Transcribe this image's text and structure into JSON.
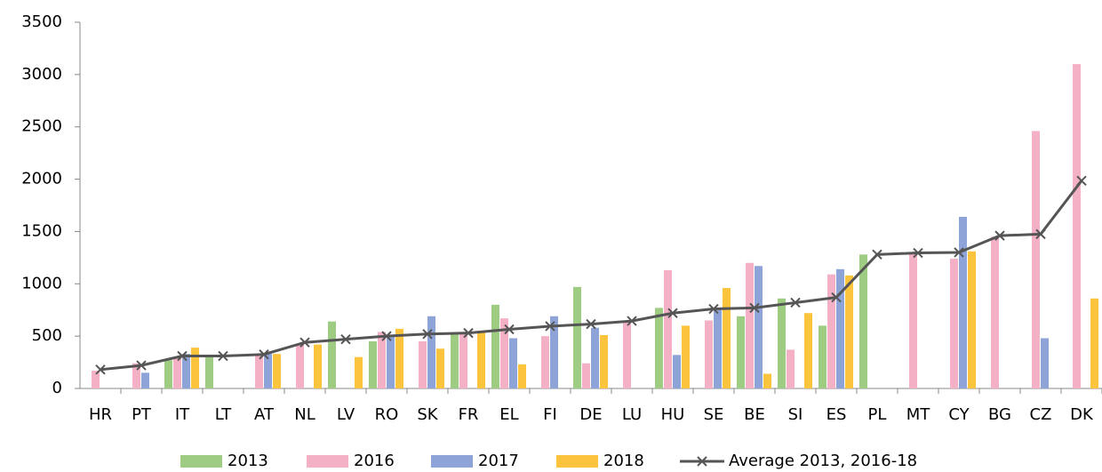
{
  "chart_data": {
    "type": "bar_line",
    "categories": [
      "HR",
      "PT",
      "IT",
      "LT",
      "AT",
      "NL",
      "LV",
      "RO",
      "SK",
      "FR",
      "EL",
      "FI",
      "DE",
      "LU",
      "HU",
      "SE",
      "BE",
      "SI",
      "ES",
      "PL",
      "MT",
      "CY",
      "BG",
      "CZ",
      "DK"
    ],
    "ylim": [
      0,
      3500
    ],
    "yticks": [
      0,
      500,
      1000,
      1500,
      2000,
      2500,
      3000,
      3500
    ],
    "grid": false,
    "legend": "bottom",
    "series": [
      {
        "name": "2013",
        "color": "#9dcc82",
        "type": "bar",
        "values": [
          null,
          null,
          270,
          310,
          null,
          null,
          640,
          450,
          null,
          520,
          800,
          null,
          970,
          null,
          770,
          null,
          690,
          860,
          600,
          1280,
          null,
          null,
          null,
          null,
          null
        ]
      },
      {
        "name": "2016",
        "color": "#f4b1c6",
        "type": "bar",
        "values": [
          170,
          240,
          300,
          null,
          310,
          420,
          null,
          540,
          450,
          540,
          670,
          500,
          240,
          640,
          1130,
          650,
          1200,
          370,
          1090,
          null,
          1290,
          1240,
          1450,
          2460,
          3100
        ]
      },
      {
        "name": "2017",
        "color": "#8ea4d8",
        "type": "bar",
        "values": [
          null,
          150,
          330,
          null,
          330,
          null,
          null,
          500,
          690,
          null,
          480,
          690,
          580,
          null,
          320,
          770,
          1170,
          null,
          1140,
          null,
          null,
          1640,
          null,
          480,
          null
        ]
      },
      {
        "name": "2018",
        "color": "#fcc43c",
        "type": "bar",
        "values": [
          null,
          null,
          390,
          null,
          330,
          420,
          300,
          570,
          380,
          540,
          230,
          null,
          510,
          null,
          600,
          960,
          140,
          720,
          1080,
          null,
          null,
          1310,
          null,
          null,
          860
        ]
      },
      {
        "name": "Average 2013, 2016-18",
        "color": "#555555",
        "type": "line",
        "values": [
          180,
          220,
          310,
          310,
          325,
          440,
          470,
          500,
          520,
          530,
          565,
          595,
          615,
          645,
          720,
          760,
          770,
          820,
          870,
          1280,
          1295,
          1300,
          1460,
          1475,
          1985
        ]
      }
    ]
  }
}
